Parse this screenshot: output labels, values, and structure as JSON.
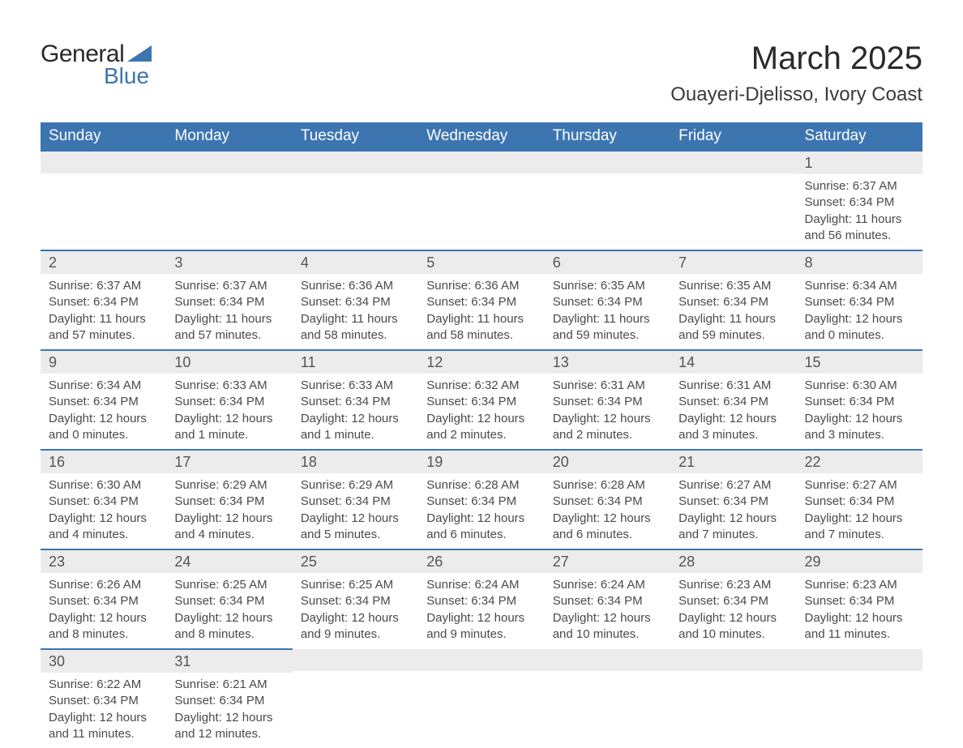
{
  "logo": {
    "text1": "General",
    "text2": "Blue"
  },
  "title": "March 2025",
  "location": "Ouayeri-Djelisso, Ivory Coast",
  "colors": {
    "header_bg": "#3d75b1",
    "header_text": "#ffffff",
    "daynum_bg": "#ececec",
    "row_border": "#3d75b1",
    "body_text": "#4a4a4a",
    "logo_blue": "#3d75b1"
  },
  "columns": [
    "Sunday",
    "Monday",
    "Tuesday",
    "Wednesday",
    "Thursday",
    "Friday",
    "Saturday"
  ],
  "weeks": [
    [
      null,
      null,
      null,
      null,
      null,
      null,
      {
        "d": "1",
        "sr": "6:37 AM",
        "ss": "6:34 PM",
        "dl": "11 hours and 56 minutes."
      }
    ],
    [
      {
        "d": "2",
        "sr": "6:37 AM",
        "ss": "6:34 PM",
        "dl": "11 hours and 57 minutes."
      },
      {
        "d": "3",
        "sr": "6:37 AM",
        "ss": "6:34 PM",
        "dl": "11 hours and 57 minutes."
      },
      {
        "d": "4",
        "sr": "6:36 AM",
        "ss": "6:34 PM",
        "dl": "11 hours and 58 minutes."
      },
      {
        "d": "5",
        "sr": "6:36 AM",
        "ss": "6:34 PM",
        "dl": "11 hours and 58 minutes."
      },
      {
        "d": "6",
        "sr": "6:35 AM",
        "ss": "6:34 PM",
        "dl": "11 hours and 59 minutes."
      },
      {
        "d": "7",
        "sr": "6:35 AM",
        "ss": "6:34 PM",
        "dl": "11 hours and 59 minutes."
      },
      {
        "d": "8",
        "sr": "6:34 AM",
        "ss": "6:34 PM",
        "dl": "12 hours and 0 minutes."
      }
    ],
    [
      {
        "d": "9",
        "sr": "6:34 AM",
        "ss": "6:34 PM",
        "dl": "12 hours and 0 minutes."
      },
      {
        "d": "10",
        "sr": "6:33 AM",
        "ss": "6:34 PM",
        "dl": "12 hours and 1 minute."
      },
      {
        "d": "11",
        "sr": "6:33 AM",
        "ss": "6:34 PM",
        "dl": "12 hours and 1 minute."
      },
      {
        "d": "12",
        "sr": "6:32 AM",
        "ss": "6:34 PM",
        "dl": "12 hours and 2 minutes."
      },
      {
        "d": "13",
        "sr": "6:31 AM",
        "ss": "6:34 PM",
        "dl": "12 hours and 2 minutes."
      },
      {
        "d": "14",
        "sr": "6:31 AM",
        "ss": "6:34 PM",
        "dl": "12 hours and 3 minutes."
      },
      {
        "d": "15",
        "sr": "6:30 AM",
        "ss": "6:34 PM",
        "dl": "12 hours and 3 minutes."
      }
    ],
    [
      {
        "d": "16",
        "sr": "6:30 AM",
        "ss": "6:34 PM",
        "dl": "12 hours and 4 minutes."
      },
      {
        "d": "17",
        "sr": "6:29 AM",
        "ss": "6:34 PM",
        "dl": "12 hours and 4 minutes."
      },
      {
        "d": "18",
        "sr": "6:29 AM",
        "ss": "6:34 PM",
        "dl": "12 hours and 5 minutes."
      },
      {
        "d": "19",
        "sr": "6:28 AM",
        "ss": "6:34 PM",
        "dl": "12 hours and 6 minutes."
      },
      {
        "d": "20",
        "sr": "6:28 AM",
        "ss": "6:34 PM",
        "dl": "12 hours and 6 minutes."
      },
      {
        "d": "21",
        "sr": "6:27 AM",
        "ss": "6:34 PM",
        "dl": "12 hours and 7 minutes."
      },
      {
        "d": "22",
        "sr": "6:27 AM",
        "ss": "6:34 PM",
        "dl": "12 hours and 7 minutes."
      }
    ],
    [
      {
        "d": "23",
        "sr": "6:26 AM",
        "ss": "6:34 PM",
        "dl": "12 hours and 8 minutes."
      },
      {
        "d": "24",
        "sr": "6:25 AM",
        "ss": "6:34 PM",
        "dl": "12 hours and 8 minutes."
      },
      {
        "d": "25",
        "sr": "6:25 AM",
        "ss": "6:34 PM",
        "dl": "12 hours and 9 minutes."
      },
      {
        "d": "26",
        "sr": "6:24 AM",
        "ss": "6:34 PM",
        "dl": "12 hours and 9 minutes."
      },
      {
        "d": "27",
        "sr": "6:24 AM",
        "ss": "6:34 PM",
        "dl": "12 hours and 10 minutes."
      },
      {
        "d": "28",
        "sr": "6:23 AM",
        "ss": "6:34 PM",
        "dl": "12 hours and 10 minutes."
      },
      {
        "d": "29",
        "sr": "6:23 AM",
        "ss": "6:34 PM",
        "dl": "12 hours and 11 minutes."
      }
    ],
    [
      {
        "d": "30",
        "sr": "6:22 AM",
        "ss": "6:34 PM",
        "dl": "12 hours and 11 minutes."
      },
      {
        "d": "31",
        "sr": "6:21 AM",
        "ss": "6:34 PM",
        "dl": "12 hours and 12 minutes."
      },
      null,
      null,
      null,
      null,
      null
    ]
  ],
  "labels": {
    "sunrise": "Sunrise: ",
    "sunset": "Sunset: ",
    "daylight": "Daylight: "
  }
}
